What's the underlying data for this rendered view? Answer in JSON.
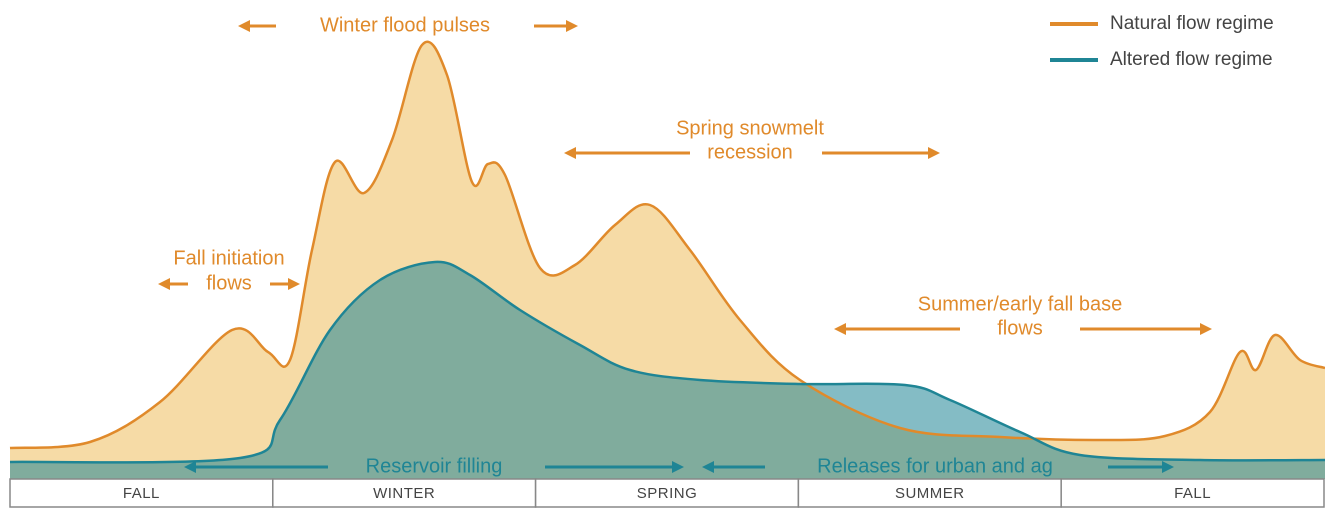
{
  "legend": [
    {
      "label": "Natural flow regime"
    },
    {
      "label": "Altered flow regime"
    }
  ],
  "annotations": {
    "winter_flood_pulses": "Winter flood pulses",
    "spring_snowmelt_recession": [
      "Spring snowmelt",
      "recession"
    ],
    "fall_initiation_flows": [
      "Fall initiation",
      "flows"
    ],
    "summer_base_flows": [
      "Summer/early fall base",
      "flows"
    ],
    "reservoir_filling": "Reservoir filling",
    "releases": "Releases for urban and ag"
  },
  "seasons": [
    "FALL",
    "WINTER",
    "SPRING",
    "SUMMER",
    "FALL"
  ]
}
